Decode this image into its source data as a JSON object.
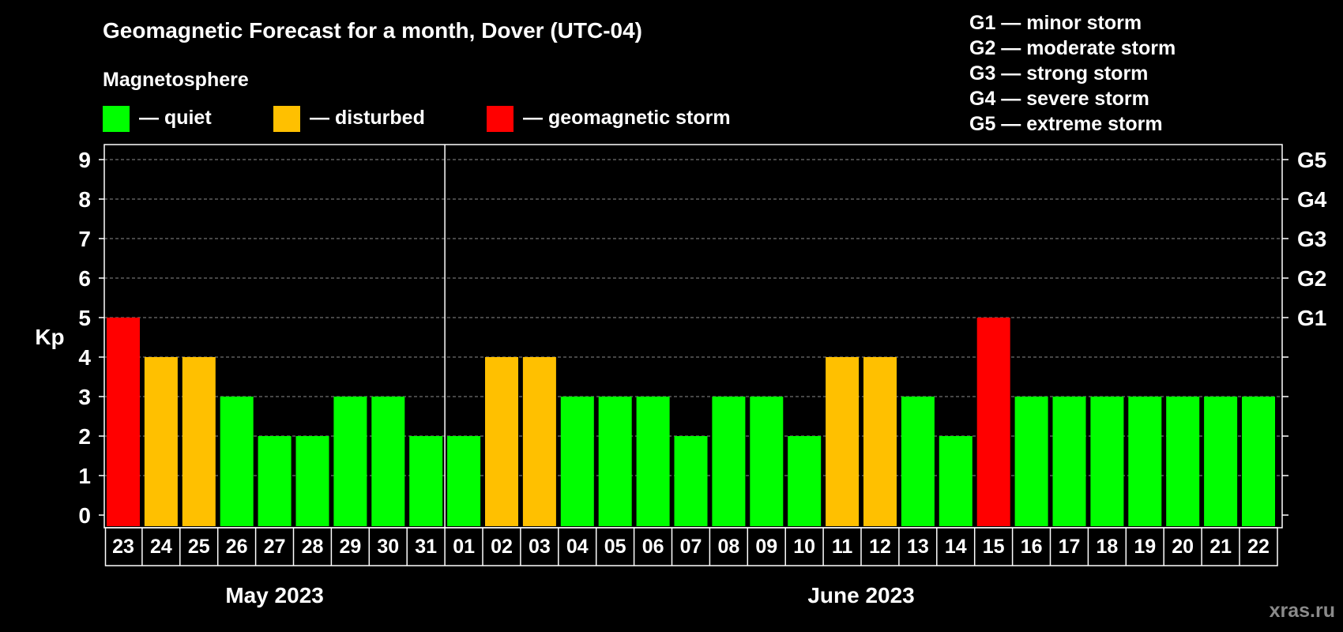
{
  "chart_data": {
    "type": "bar",
    "title": "Geomagnetic Forecast for a month, Dover (UTC-04)",
    "subtitle": "Magnetosphere",
    "ylabel": "Kp",
    "ylim": [
      0,
      9
    ],
    "yticks": [
      "0",
      "1",
      "2",
      "3",
      "4",
      "5",
      "6",
      "7",
      "8",
      "9"
    ],
    "right_axis_labels": [
      {
        "kp": 5,
        "label": "G1"
      },
      {
        "kp": 6,
        "label": "G2"
      },
      {
        "kp": 7,
        "label": "G3"
      },
      {
        "kp": 8,
        "label": "G4"
      },
      {
        "kp": 9,
        "label": "G5"
      }
    ],
    "legend": [
      {
        "label": "— quiet",
        "color": "#00ff00"
      },
      {
        "label": "— disturbed",
        "color": "#ffc000"
      },
      {
        "label": "— geomagnetic storm",
        "color": "#ff0000"
      }
    ],
    "storm_scale": [
      "G1 — minor storm",
      "G2 — moderate storm",
      "G3 — strong storm",
      "G4 — severe storm",
      "G5 — extreme storm"
    ],
    "categories": [
      "23",
      "24",
      "25",
      "26",
      "27",
      "28",
      "29",
      "30",
      "31",
      "01",
      "02",
      "03",
      "04",
      "05",
      "06",
      "07",
      "08",
      "09",
      "10",
      "11",
      "12",
      "13",
      "14",
      "15",
      "16",
      "17",
      "18",
      "19",
      "20",
      "21",
      "22"
    ],
    "values": [
      5,
      4,
      4,
      3,
      2,
      2,
      3,
      3,
      2,
      2,
      4,
      4,
      3,
      3,
      3,
      2,
      3,
      3,
      2,
      4,
      4,
      3,
      2,
      5,
      3,
      3,
      3,
      3,
      3,
      3,
      3
    ],
    "months": [
      {
        "label": "May 2023",
        "start_index": 0,
        "end_index": 8
      },
      {
        "label": "June 2023",
        "start_index": 9,
        "end_index": 30
      }
    ],
    "colors": {
      "quiet": "#00ff00",
      "disturbed": "#ffc000",
      "storm": "#ff0000"
    },
    "grid": true
  },
  "watermark": "xras.ru"
}
